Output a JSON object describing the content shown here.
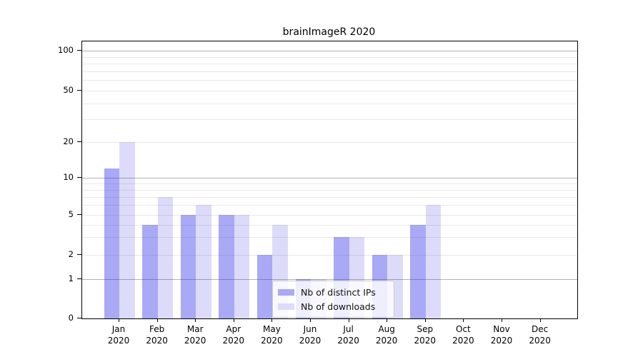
{
  "chart_data": {
    "type": "bar",
    "title": "brainImageR 2020",
    "categories": [
      "Jan",
      "Feb",
      "Mar",
      "Apr",
      "May",
      "Jun",
      "Jul",
      "Aug",
      "Sep",
      "Oct",
      "Nov",
      "Dec"
    ],
    "category_year": "2020",
    "series": [
      {
        "name": "Nb of distinct IPs",
        "color": "#a9a9f6",
        "fill": "rgba(40,40,233,0.4)",
        "values": [
          12,
          4,
          5,
          5,
          2,
          1,
          3,
          2,
          4,
          0,
          0,
          0
        ]
      },
      {
        "name": "Nb of downloads",
        "color": "#dcdcfa",
        "fill": "rgba(22,22,222,0.15)",
        "values": [
          20,
          7,
          6,
          5,
          4,
          1,
          3,
          2,
          6,
          0,
          0,
          0
        ]
      }
    ],
    "yticks": [
      0,
      1,
      2,
      5,
      10,
      20,
      50,
      100
    ],
    "yticks_minor": [
      3,
      4,
      6,
      7,
      8,
      9,
      30,
      40,
      60,
      70,
      80,
      90
    ],
    "ylim": [
      0,
      117
    ],
    "scale": "log above 1, linear 0-1",
    "grid": true,
    "legend_position": "lower center",
    "grid_major_color": "#b3b3b3",
    "grid_minor_color": "#e9e9e9"
  }
}
